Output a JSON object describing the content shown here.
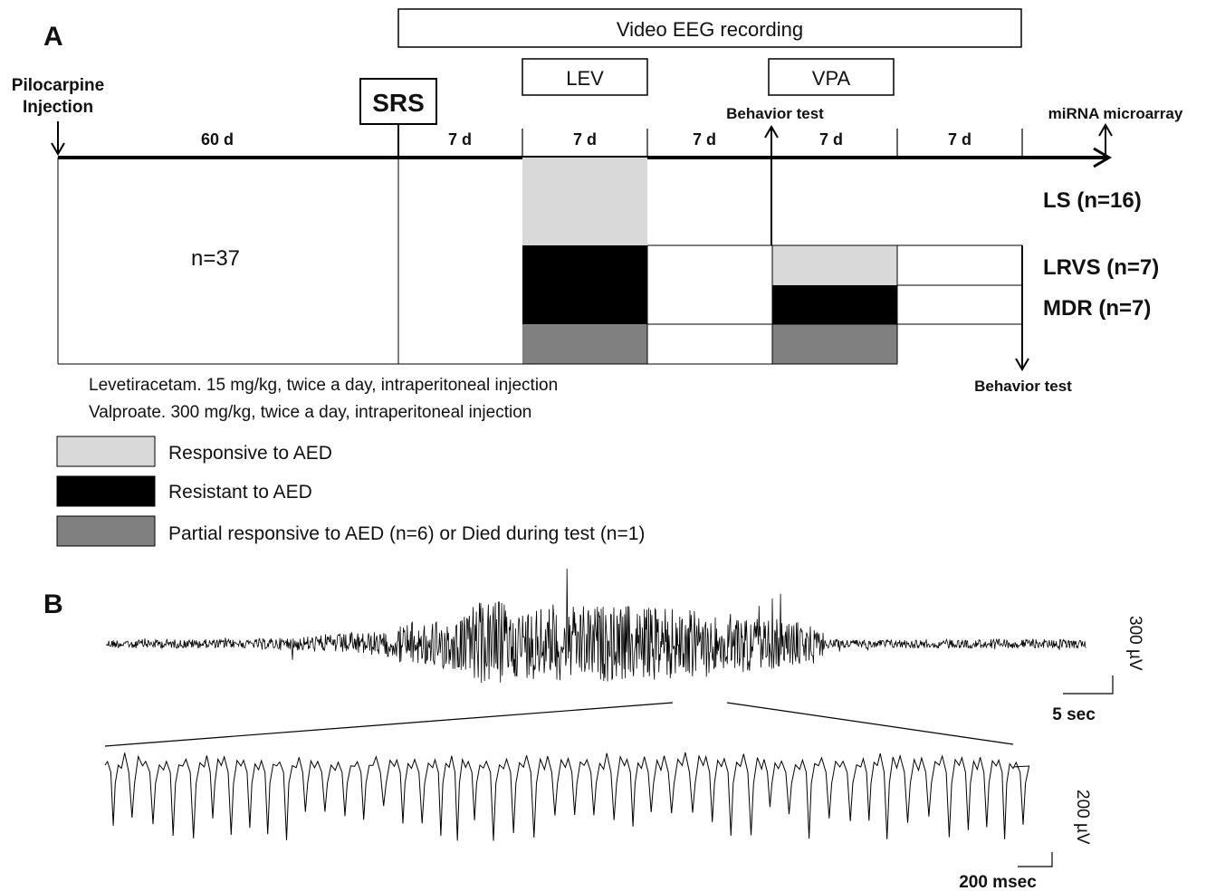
{
  "panel_a": {
    "label": "A",
    "video_eeg": "Video EEG recording",
    "lev": "LEV",
    "vpa": "VPA",
    "pilocarpine_line1": "Pilocarpine",
    "pilocarpine_line2": "Injection",
    "srs": "SRS",
    "behavior_test_top": "Behavior test",
    "mirna": "miRNA microarray",
    "durations": [
      "60 d",
      "7 d",
      "7 d",
      "7 d",
      "7 d",
      "7 d"
    ],
    "n_total": "n=37",
    "groups": {
      "ls": "LS (n=16)",
      "lrvs": "LRVS (n=7)",
      "mdr": "MDR (n=7)"
    },
    "behavior_test_bottom": "Behavior test",
    "drug_notes": [
      "Levetiracetam. 15 mg/kg, twice a day, intraperitoneal injection",
      "Valproate. 300 mg/kg, twice a day, intraperitoneal injection"
    ],
    "legend": [
      {
        "label": "Responsive to AED",
        "color": "#d9d9d9"
      },
      {
        "label": "Resistant to AED",
        "color": "#000000"
      },
      {
        "label": "Partial responsive to AED (n=6) or Died during test (n=1)",
        "color": "#808080"
      }
    ]
  },
  "panel_b": {
    "label": "B",
    "scale_top_v": "300 µV",
    "scale_top_t": "5 sec",
    "scale_bottom_v": "200 µV",
    "scale_bottom_t": "200 msec"
  }
}
